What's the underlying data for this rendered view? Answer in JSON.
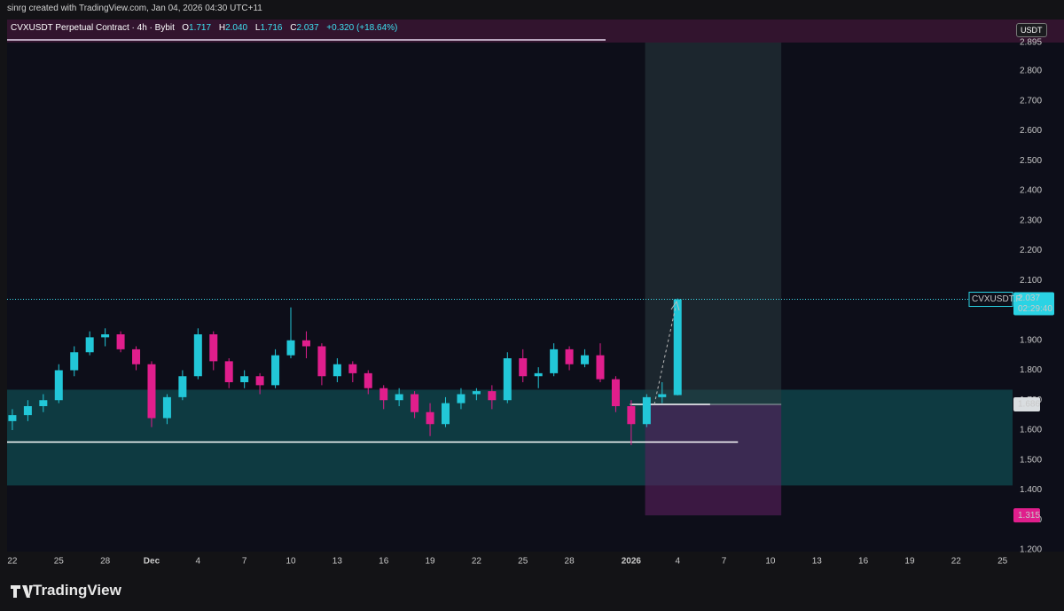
{
  "header": "sinrg created with TradingView.com, Jan 04, 2026 04:30 UTC+11",
  "footer": "TradingView",
  "currency": "USDT",
  "chart_data": {
    "type": "candlestick",
    "title": "CVXUSDT Perpetual Contract · 4h · Bybit",
    "ohlc_labels": [
      "O",
      "H",
      "L",
      "C"
    ],
    "ohlc_text": [
      "1.717",
      "2.040",
      "1.716",
      "2.037"
    ],
    "change_text": "+0.320 (+18.64%)",
    "up_color": "#22c7d8",
    "down_color": "#e01e8c",
    "x": [
      -9,
      -8,
      -7,
      -6,
      -5,
      -4,
      -3,
      -2,
      -1,
      0,
      1,
      2,
      3,
      4,
      5,
      6,
      7,
      8,
      9,
      10,
      11,
      12,
      13,
      14,
      15,
      16,
      17,
      18,
      19,
      20,
      21,
      22,
      23,
      24,
      25,
      26,
      27,
      28,
      29,
      30,
      31,
      32,
      33,
      34
    ],
    "open": [
      1.63,
      1.65,
      1.68,
      1.7,
      1.8,
      1.86,
      1.91,
      1.92,
      1.87,
      1.82,
      1.64,
      1.71,
      1.78,
      1.92,
      1.83,
      1.76,
      1.78,
      1.75,
      1.85,
      1.9,
      1.88,
      1.78,
      1.82,
      1.79,
      1.74,
      1.7,
      1.72,
      1.66,
      1.62,
      1.69,
      1.72,
      1.73,
      1.7,
      1.84,
      1.78,
      1.79,
      1.87,
      1.82,
      1.85,
      1.77,
      1.68,
      1.62,
      1.71,
      1.717
    ],
    "high": [
      1.67,
      1.7,
      1.72,
      1.82,
      1.88,
      1.93,
      1.94,
      1.93,
      1.88,
      1.83,
      1.72,
      1.8,
      1.94,
      1.93,
      1.84,
      1.8,
      1.79,
      1.87,
      2.01,
      1.93,
      1.89,
      1.84,
      1.83,
      1.8,
      1.75,
      1.74,
      1.73,
      1.69,
      1.71,
      1.74,
      1.74,
      1.75,
      1.86,
      1.87,
      1.81,
      1.89,
      1.88,
      1.87,
      1.89,
      1.78,
      1.7,
      1.72,
      1.76,
      2.04
    ],
    "low": [
      1.6,
      1.63,
      1.66,
      1.69,
      1.78,
      1.85,
      1.88,
      1.86,
      1.8,
      1.61,
      1.62,
      1.7,
      1.77,
      1.8,
      1.74,
      1.74,
      1.72,
      1.74,
      1.84,
      1.84,
      1.75,
      1.76,
      1.76,
      1.72,
      1.67,
      1.68,
      1.64,
      1.58,
      1.61,
      1.67,
      1.7,
      1.67,
      1.69,
      1.76,
      1.74,
      1.78,
      1.8,
      1.81,
      1.76,
      1.66,
      1.55,
      1.61,
      1.69,
      1.716
    ],
    "close": [
      1.65,
      1.68,
      1.7,
      1.8,
      1.86,
      1.91,
      1.92,
      1.87,
      1.82,
      1.64,
      1.71,
      1.78,
      1.92,
      1.83,
      1.76,
      1.78,
      1.75,
      1.85,
      1.9,
      1.88,
      1.78,
      1.82,
      1.79,
      1.74,
      1.7,
      1.72,
      1.66,
      1.62,
      1.69,
      1.72,
      1.73,
      1.7,
      1.84,
      1.78,
      1.79,
      1.87,
      1.82,
      1.85,
      1.77,
      1.68,
      1.62,
      1.71,
      1.72,
      2.037
    ],
    "xlim": [
      -9.34,
      55.65
    ],
    "xticks": [
      {
        "value": -9,
        "label": "22"
      },
      {
        "value": -6,
        "label": "25"
      },
      {
        "value": -3,
        "label": "28"
      },
      {
        "value": 0,
        "label": "Dec"
      },
      {
        "value": 3,
        "label": "4"
      },
      {
        "value": 6,
        "label": "7"
      },
      {
        "value": 9,
        "label": "10"
      },
      {
        "value": 12,
        "label": "13"
      },
      {
        "value": 15,
        "label": "16"
      },
      {
        "value": 18,
        "label": "19"
      },
      {
        "value": 21,
        "label": "22"
      },
      {
        "value": 24,
        "label": "25"
      },
      {
        "value": 27,
        "label": "28"
      },
      {
        "value": 31,
        "label": "2026"
      },
      {
        "value": 34,
        "label": "4"
      },
      {
        "value": 37,
        "label": "7"
      },
      {
        "value": 40,
        "label": "10"
      },
      {
        "value": 43,
        "label": "13"
      },
      {
        "value": 46,
        "label": "16"
      },
      {
        "value": 49,
        "label": "19"
      },
      {
        "value": 52,
        "label": "22"
      },
      {
        "value": 55,
        "label": "25"
      }
    ],
    "ylim": [
      1.194,
      2.972
    ],
    "yticks": [
      {
        "value": 1.2,
        "label": "1.200"
      },
      {
        "value": 1.3,
        "label": "1.300"
      },
      {
        "value": 1.4,
        "label": "1.400"
      },
      {
        "value": 1.5,
        "label": "1.500"
      },
      {
        "value": 1.6,
        "label": "1.600"
      },
      {
        "value": 1.7,
        "label": "1.700"
      },
      {
        "value": 1.8,
        "label": "1.800"
      },
      {
        "value": 1.9,
        "label": "1.900"
      },
      {
        "value": 2.0,
        "label": "2.000"
      },
      {
        "value": 2.1,
        "label": "2.100"
      },
      {
        "value": 2.2,
        "label": "2.200"
      },
      {
        "value": 2.3,
        "label": "2.300"
      },
      {
        "value": 2.4,
        "label": "2.400"
      },
      {
        "value": 2.5,
        "label": "2.500"
      },
      {
        "value": 2.6,
        "label": "2.600"
      },
      {
        "value": 2.7,
        "label": "2.700"
      },
      {
        "value": 2.8,
        "label": "2.800"
      }
    ],
    "grid": false,
    "zone": [
      1.415,
      1.735
    ],
    "level": {
      "value": 1.56,
      "x": [
        -9.34,
        37.9
      ]
    },
    "position": {
      "target": 2.895,
      "entry": 1.686,
      "stop": 1.315,
      "x": [
        31.9,
        40.7
      ],
      "entry_x_end": 36.1
    },
    "last_price": {
      "symbol": "CVXUSDT.P",
      "value": 2.037,
      "countdown": "02:29:40"
    }
  }
}
